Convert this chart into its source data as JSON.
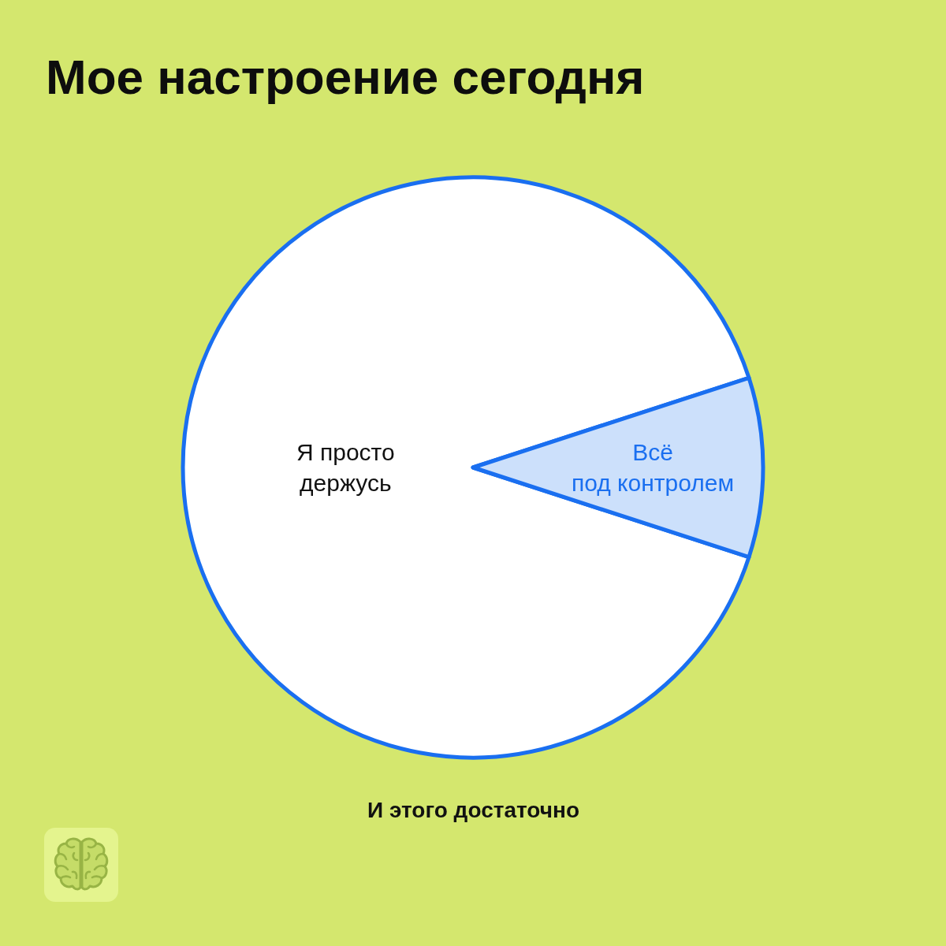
{
  "chart_data": {
    "type": "pie",
    "title": "Мое настроение сегодня",
    "categories": [
      "Я просто\nдержусь",
      "Всё\nпод контролем"
    ],
    "values": [
      90,
      10
    ],
    "colors": [
      "#ffffff",
      "#cce0fb"
    ],
    "annotations": [
      "И этого достаточно"
    ]
  }
}
